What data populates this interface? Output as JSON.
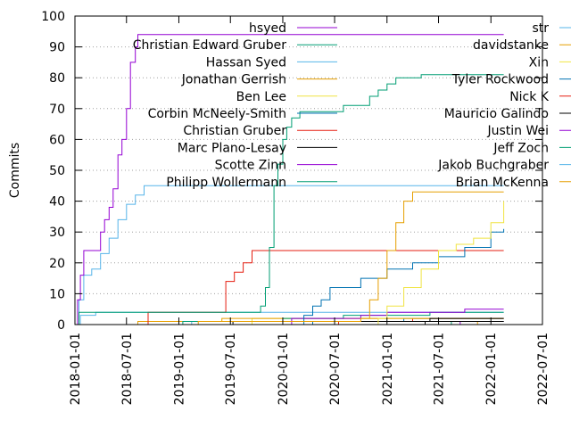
{
  "chart_data": {
    "type": "line",
    "line_style": "step",
    "title": "",
    "xlabel": "",
    "ylabel": "Commits",
    "xlim": [
      "2018-01-01",
      "2022-07-01"
    ],
    "ylim": [
      0,
      100
    ],
    "x_ticks": [
      "2018-01-01",
      "2018-07-01",
      "2019-01-01",
      "2019-07-01",
      "2020-01-01",
      "2020-07-01",
      "2021-01-01",
      "2021-07-01",
      "2022-01-01",
      "2022-07-01"
    ],
    "y_ticks": [
      0,
      10,
      20,
      30,
      40,
      50,
      60,
      70,
      80,
      90,
      100
    ],
    "grid": "horizontal dotted",
    "legend_position": "inside-top, two columns",
    "series": [
      {
        "name": "hsyed",
        "color": "#9400d3",
        "points": [
          [
            "2018-01-01",
            0
          ],
          [
            "2018-01-10",
            8
          ],
          [
            "2018-01-20",
            16
          ],
          [
            "2018-02-01",
            24
          ],
          [
            "2018-03-15",
            24
          ],
          [
            "2018-04-01",
            30
          ],
          [
            "2018-04-15",
            34
          ],
          [
            "2018-05-01",
            38
          ],
          [
            "2018-05-15",
            44
          ],
          [
            "2018-06-01",
            55
          ],
          [
            "2018-06-15",
            60
          ],
          [
            "2018-07-01",
            70
          ],
          [
            "2018-07-15",
            85
          ],
          [
            "2018-08-01",
            90
          ],
          [
            "2018-08-10",
            94
          ],
          [
            "2022-02-15",
            94
          ]
        ]
      },
      {
        "name": "Christian Edward Gruber",
        "color": "#009e73",
        "points": [
          [
            "2018-01-01",
            0
          ],
          [
            "2018-01-15",
            4
          ],
          [
            "2019-10-01",
            4
          ],
          [
            "2019-10-15",
            6
          ],
          [
            "2019-11-01",
            12
          ],
          [
            "2019-11-15",
            25
          ],
          [
            "2019-12-01",
            45
          ],
          [
            "2019-12-15",
            52
          ],
          [
            "2020-01-01",
            60
          ],
          [
            "2020-01-15",
            64
          ],
          [
            "2020-02-01",
            67
          ],
          [
            "2020-03-01",
            69
          ],
          [
            "2020-06-01",
            69
          ],
          [
            "2020-08-01",
            71
          ],
          [
            "2020-11-01",
            74
          ],
          [
            "2020-12-01",
            76
          ],
          [
            "2021-01-01",
            78
          ],
          [
            "2021-02-01",
            80
          ],
          [
            "2021-05-01",
            81
          ],
          [
            "2022-02-15",
            81
          ]
        ]
      },
      {
        "name": "Hassan Syed",
        "color": "#56b4e9",
        "points": [
          [
            "2018-01-01",
            0
          ],
          [
            "2018-01-15",
            8
          ],
          [
            "2018-02-01",
            16
          ],
          [
            "2018-03-01",
            18
          ],
          [
            "2018-04-01",
            23
          ],
          [
            "2018-05-01",
            28
          ],
          [
            "2018-06-01",
            34
          ],
          [
            "2018-07-01",
            39
          ],
          [
            "2018-08-01",
            42
          ],
          [
            "2018-09-01",
            45
          ],
          [
            "2022-02-15",
            45
          ]
        ]
      },
      {
        "name": "Jonathan Gerrish",
        "color": "#e69f00",
        "points": [
          [
            "2018-01-01",
            0
          ],
          [
            "2019-03-01",
            0
          ],
          [
            "2019-03-10",
            1
          ],
          [
            "2020-06-01",
            1
          ],
          [
            "2020-10-01",
            2
          ],
          [
            "2020-11-01",
            8
          ],
          [
            "2020-12-01",
            15
          ],
          [
            "2021-01-01",
            24
          ],
          [
            "2021-02-01",
            33
          ],
          [
            "2021-03-01",
            40
          ],
          [
            "2021-04-01",
            43
          ],
          [
            "2022-02-15",
            43
          ]
        ]
      },
      {
        "name": "Ben Lee",
        "color": "#f0e442",
        "points": [
          [
            "2018-01-01",
            0
          ],
          [
            "2020-06-01",
            0
          ],
          [
            "2020-12-01",
            2
          ],
          [
            "2021-01-01",
            6
          ],
          [
            "2021-03-01",
            12
          ],
          [
            "2021-05-01",
            18
          ],
          [
            "2021-07-01",
            24
          ],
          [
            "2021-09-01",
            26
          ],
          [
            "2021-11-01",
            28
          ],
          [
            "2022-01-01",
            33
          ],
          [
            "2022-02-15",
            40
          ]
        ]
      },
      {
        "name": "Corbin McNeely-Smith",
        "color": "#0072b2",
        "points": [
          [
            "2018-01-01",
            0
          ],
          [
            "2020-03-01",
            0
          ],
          [
            "2020-03-15",
            3
          ],
          [
            "2020-04-15",
            6
          ],
          [
            "2020-05-15",
            8
          ],
          [
            "2020-06-15",
            12
          ],
          [
            "2020-10-01",
            15
          ],
          [
            "2021-01-01",
            18
          ],
          [
            "2021-04-01",
            20
          ],
          [
            "2021-07-01",
            22
          ],
          [
            "2021-10-01",
            25
          ],
          [
            "2022-01-01",
            30
          ],
          [
            "2022-02-15",
            31
          ]
        ]
      },
      {
        "name": "Christian Gruber",
        "color": "#e51e10",
        "points": [
          [
            "2018-01-01",
            0
          ],
          [
            "2018-09-01",
            0
          ],
          [
            "2018-09-15",
            4
          ],
          [
            "2019-06-01",
            4
          ],
          [
            "2019-06-15",
            14
          ],
          [
            "2019-07-15",
            17
          ],
          [
            "2019-08-15",
            20
          ],
          [
            "2019-09-15",
            24
          ],
          [
            "2022-02-15",
            24
          ]
        ]
      },
      {
        "name": "Marc Plano-Lesay",
        "color": "#000000",
        "points": [
          [
            "2018-01-01",
            0
          ],
          [
            "2019-07-01",
            0
          ],
          [
            "2019-07-10",
            1
          ],
          [
            "2021-01-01",
            1
          ],
          [
            "2021-06-01",
            2
          ],
          [
            "2022-02-15",
            2
          ]
        ]
      },
      {
        "name": "Scotte Zinn",
        "color": "#9400d3",
        "points": [
          [
            "2018-01-01",
            0
          ],
          [
            "2020-01-01",
            0
          ],
          [
            "2020-02-01",
            2
          ],
          [
            "2020-10-01",
            3
          ],
          [
            "2021-01-01",
            4
          ],
          [
            "2021-10-01",
            5
          ],
          [
            "2022-02-15",
            5
          ]
        ]
      },
      {
        "name": "Philipp Wollermann",
        "color": "#009e73",
        "points": [
          [
            "2018-01-01",
            0
          ],
          [
            "2019-01-01",
            0
          ],
          [
            "2019-01-15",
            1
          ],
          [
            "2020-01-01",
            2
          ],
          [
            "2020-08-01",
            3
          ],
          [
            "2021-01-01",
            3
          ],
          [
            "2021-06-01",
            4
          ],
          [
            "2022-02-15",
            4
          ]
        ]
      },
      {
        "name": "str",
        "color": "#56b4e9",
        "points": [
          [
            "2018-01-01",
            0
          ],
          [
            "2018-01-20",
            3
          ],
          [
            "2018-03-01",
            3
          ],
          [
            "2018-03-15",
            4
          ],
          [
            "2019-10-01",
            4
          ],
          [
            "2022-02-15",
            4
          ]
        ]
      },
      {
        "name": "davidstanke",
        "color": "#e69f00",
        "points": [
          [
            "2018-01-01",
            0
          ],
          [
            "2018-08-01",
            0
          ],
          [
            "2018-08-10",
            1
          ],
          [
            "2019-06-01",
            2
          ],
          [
            "2020-06-01",
            2
          ],
          [
            "2022-02-15",
            2
          ]
        ]
      },
      {
        "name": "Xin",
        "color": "#f0e442",
        "points": [
          [
            "2018-01-01",
            0
          ],
          [
            "2019-09-01",
            0
          ],
          [
            "2019-09-15",
            2
          ],
          [
            "2022-02-15",
            2
          ]
        ]
      },
      {
        "name": "Tyler Rockwood",
        "color": "#0072b2",
        "points": [
          [
            "2018-01-01",
            0
          ],
          [
            "2020-04-01",
            0
          ],
          [
            "2020-04-15",
            1
          ],
          [
            "2021-03-01",
            2
          ],
          [
            "2022-02-15",
            2
          ]
        ]
      },
      {
        "name": "Nick K",
        "color": "#e51e10",
        "points": [
          [
            "2018-01-01",
            0
          ],
          [
            "2020-07-01",
            0
          ],
          [
            "2020-07-15",
            1
          ],
          [
            "2021-04-01",
            2
          ],
          [
            "2022-02-15",
            2
          ]
        ]
      },
      {
        "name": "Mauricio Galindo",
        "color": "#000000",
        "points": [
          [
            "2018-01-01",
            0
          ],
          [
            "2021-05-01",
            0
          ],
          [
            "2021-05-15",
            1
          ],
          [
            "2022-02-15",
            1
          ]
        ]
      },
      {
        "name": "Justin Wei",
        "color": "#9400d3",
        "points": [
          [
            "2018-01-01",
            0
          ],
          [
            "2021-09-01",
            0
          ],
          [
            "2021-09-15",
            1
          ],
          [
            "2022-02-15",
            1
          ]
        ]
      },
      {
        "name": "Jeff Zoch",
        "color": "#009e73",
        "points": [
          [
            "2018-01-01",
            0
          ],
          [
            "2021-08-01",
            0
          ],
          [
            "2021-08-15",
            1
          ],
          [
            "2022-02-15",
            1
          ]
        ]
      },
      {
        "name": "Jakob Buchgraber",
        "color": "#56b4e9",
        "points": [
          [
            "2018-01-01",
            0
          ],
          [
            "2019-02-01",
            0
          ],
          [
            "2019-02-15",
            1
          ],
          [
            "2022-02-15",
            1
          ]
        ]
      },
      {
        "name": "Brian McKenna",
        "color": "#e69f00",
        "points": [
          [
            "2018-01-01",
            0
          ],
          [
            "2021-11-01",
            0
          ],
          [
            "2021-11-15",
            1
          ],
          [
            "2022-02-15",
            1
          ]
        ]
      }
    ]
  }
}
